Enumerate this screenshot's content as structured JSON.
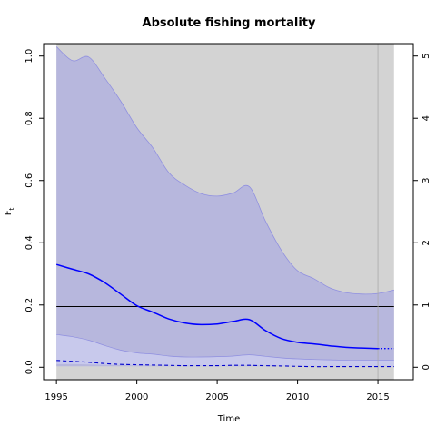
{
  "chart_data": {
    "type": "line",
    "title": "Absolute fishing mortality",
    "xlabel": "Time",
    "ylabel": "F",
    "ylabel_subscript": "t",
    "xlim": [
      1994.2,
      2017.2
    ],
    "ylim": [
      -0.04,
      1.04
    ],
    "y2lim": [
      -0.2,
      5.2
    ],
    "x_ticks": [
      1995,
      2000,
      2005,
      2010,
      2015
    ],
    "y_ticks": [
      0.0,
      0.2,
      0.4,
      0.6,
      0.8,
      1.0
    ],
    "y_tick_labels": [
      "0.0",
      "0.2",
      "0.4",
      "0.6",
      "0.8",
      "1.0"
    ],
    "y2_ticks": [
      0,
      1,
      2,
      3,
      4,
      5
    ],
    "y2_tick_labels": [
      "0",
      "1",
      "2",
      "3",
      "4",
      "5"
    ],
    "background_region": {
      "x": [
        1995,
        2016
      ],
      "color": "#d3d3d3"
    },
    "reference_line": {
      "y": 0.195,
      "color": "#000000"
    },
    "vertical_line": {
      "x": 2015,
      "color": "#aaaaaa"
    },
    "last_observation_year": 2015,
    "x": [
      1995,
      1996,
      1997,
      1998,
      1999,
      2000,
      2001,
      2002,
      2003,
      2004,
      2005,
      2006,
      2007,
      2008,
      2009,
      2010,
      2011,
      2012,
      2013,
      2014,
      2015,
      2016
    ],
    "series": [
      {
        "role": "outer_upper",
        "values": [
          1.03,
          0.985,
          0.997,
          0.93,
          0.855,
          0.77,
          0.705,
          0.625,
          0.585,
          0.558,
          0.55,
          0.56,
          0.58,
          0.47,
          0.375,
          0.31,
          0.285,
          0.255,
          0.24,
          0.235,
          0.237,
          0.248
        ]
      },
      {
        "role": "outer_lower",
        "values": [
          0.003,
          0.003,
          0.003,
          0.003,
          0.003,
          0.003,
          0.003,
          0.003,
          0.003,
          0.003,
          0.003,
          0.003,
          0.003,
          0.003,
          0.003,
          0.003,
          0.003,
          0.003,
          0.003,
          0.003,
          0.003,
          0.003
        ]
      },
      {
        "role": "ci_upper",
        "values": [
          0.105,
          0.098,
          0.087,
          0.07,
          0.055,
          0.046,
          0.042,
          0.036,
          0.033,
          0.033,
          0.034,
          0.036,
          0.04,
          0.035,
          0.03,
          0.027,
          0.025,
          0.024,
          0.023,
          0.023,
          0.023,
          0.023
        ]
      },
      {
        "role": "ci_lower",
        "values": [
          0.01,
          0.01,
          0.009,
          0.008,
          0.007,
          0.006,
          0.006,
          0.005,
          0.005,
          0.005,
          0.005,
          0.005,
          0.006,
          0.005,
          0.005,
          0.004,
          0.004,
          0.004,
          0.004,
          0.004,
          0.004,
          0.004
        ]
      },
      {
        "role": "estimate",
        "values": [
          0.33,
          0.315,
          0.3,
          0.272,
          0.235,
          0.198,
          0.177,
          0.155,
          0.142,
          0.137,
          0.139,
          0.147,
          0.153,
          0.118,
          0.092,
          0.08,
          0.075,
          0.069,
          0.064,
          0.062,
          0.06,
          0.06
        ]
      },
      {
        "role": "estimate_secondary",
        "values": [
          0.022,
          0.019,
          0.016,
          0.012,
          0.009,
          0.008,
          0.007,
          0.006,
          0.005,
          0.005,
          0.005,
          0.006,
          0.006,
          0.005,
          0.004,
          0.003,
          0.002,
          0.002,
          0.002,
          0.002,
          0.002,
          0.002
        ]
      }
    ],
    "colors": {
      "band_fill": "#b7b7dd",
      "band_edge": "#8f8fe0",
      "ci_fill": "#cfd0f2",
      "estimate": "#0000ff",
      "secondary": "#0000cc",
      "axis": "#000000"
    },
    "grid": false
  }
}
